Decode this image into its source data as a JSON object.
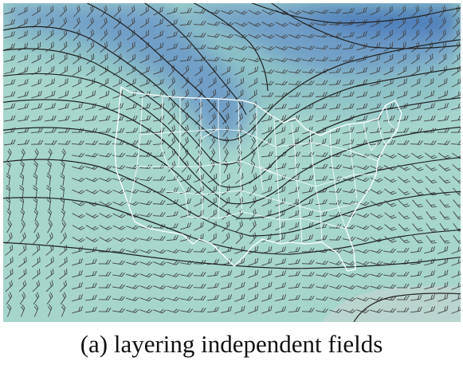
{
  "figure": {
    "caption": "(a) layering independent fields"
  },
  "map": {
    "layers": [
      "filled-field",
      "contour-lines",
      "wind-barbs",
      "state-boundaries"
    ],
    "colors": {
      "field_light": "#a6d6cc",
      "field_mid": "#8ec3c7",
      "field_blue": "#6f9ec7",
      "field_dark": "#4a7bba",
      "field_gray": "#d3d3d3",
      "contour": "#222222",
      "barb": "#444444",
      "boundary": "#ffffff"
    }
  }
}
